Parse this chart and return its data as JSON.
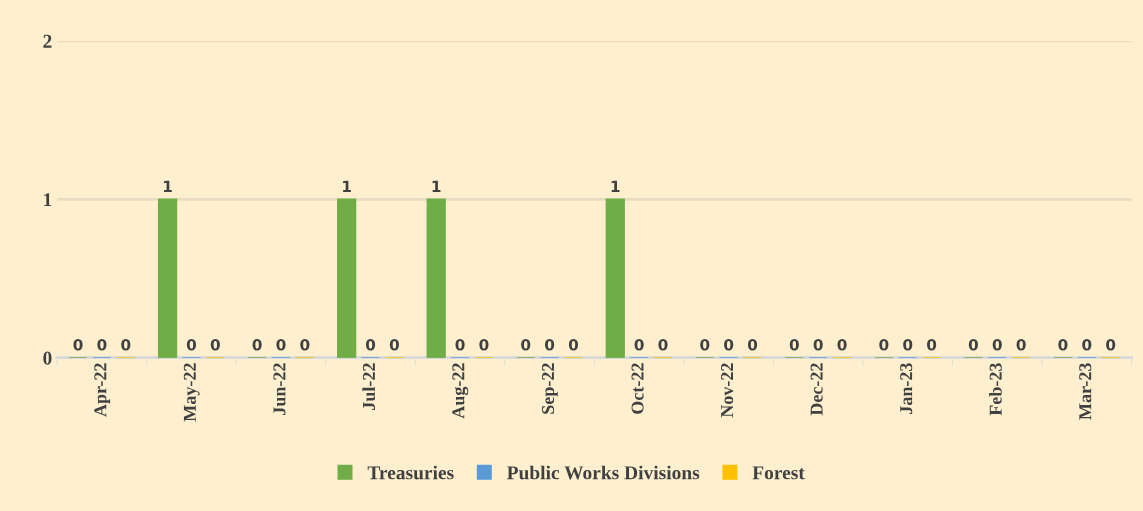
{
  "chart_data": {
    "type": "bar",
    "categories": [
      "Apr-22",
      "May-22",
      "Jun-22",
      "Jul-22",
      "Aug-22",
      "Sep-22",
      "Oct-22",
      "Nov-22",
      "Dec-22",
      "Jan-23",
      "Feb-23",
      "Mar-23"
    ],
    "series": [
      {
        "name": "Treasuries",
        "color": "#70ad47",
        "values": [
          0,
          1,
          0,
          1,
          1,
          0,
          1,
          0,
          0,
          0,
          0,
          0
        ]
      },
      {
        "name": "Public Works Divisions",
        "color": "#5b9bd5",
        "values": [
          0,
          0,
          0,
          0,
          0,
          0,
          0,
          0,
          0,
          0,
          0,
          0
        ]
      },
      {
        "name": "Forest",
        "color": "#ffc000",
        "values": [
          0,
          0,
          0,
          0,
          0,
          0,
          0,
          0,
          0,
          0,
          0,
          0
        ]
      }
    ],
    "ylim": [
      0,
      2
    ],
    "yticks": [
      0,
      1,
      2
    ],
    "grid": "y",
    "legend": "bottom",
    "data_labels": true
  }
}
